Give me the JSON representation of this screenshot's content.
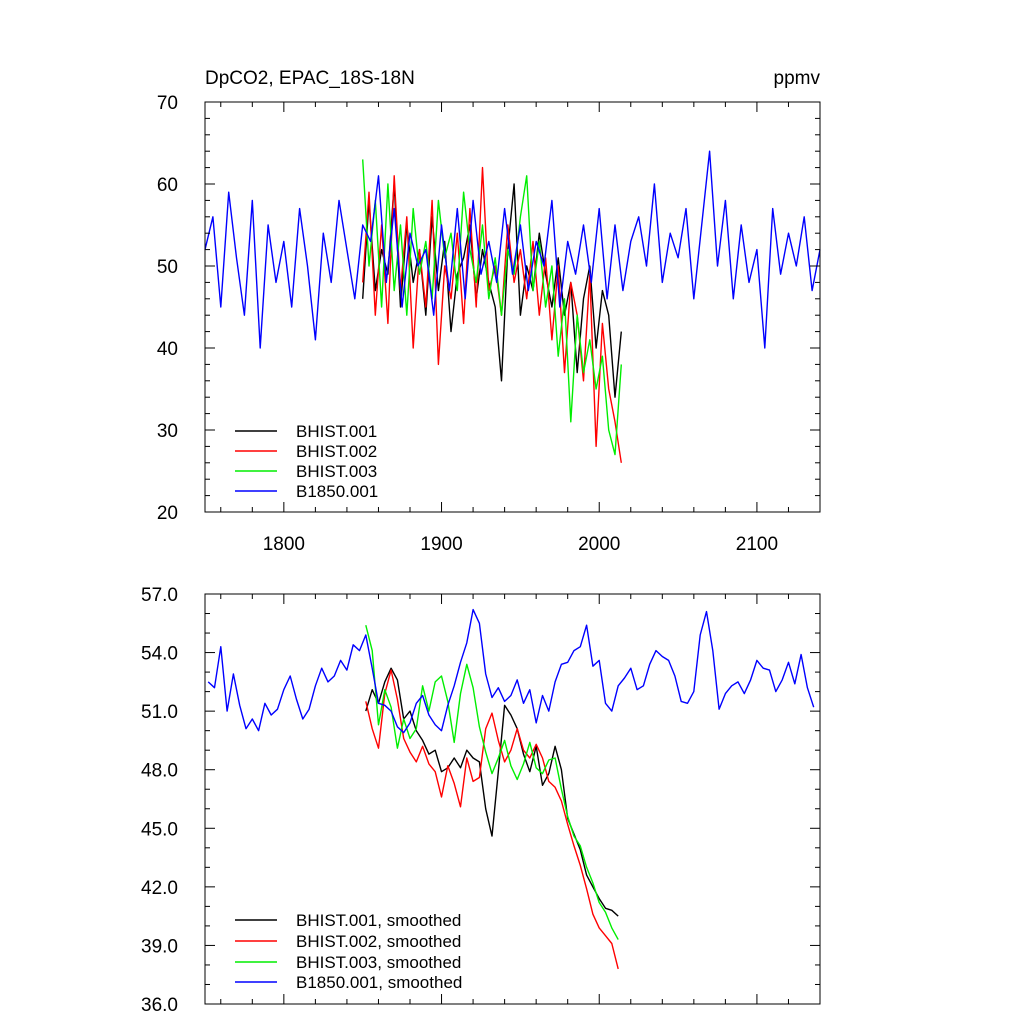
{
  "chart_data": [
    {
      "type": "line",
      "title": "DpCO2, EPAC_18S-18N",
      "units": "ppmv",
      "xlabel": "",
      "ylabel": "",
      "xlim": [
        1750,
        2140
      ],
      "ylim": [
        20,
        70
      ],
      "x_ticks": [
        1800,
        1900,
        2000,
        2100
      ],
      "x_tick_labels": [
        "1800",
        "1900",
        "2000",
        "2100"
      ],
      "y_ticks": [
        20,
        30,
        40,
        50,
        60,
        70
      ],
      "y_tick_labels": [
        "20",
        "30",
        "40",
        "50",
        "60",
        "70"
      ],
      "legend_position": "bottom-left",
      "series": [
        {
          "name": "BHIST.001",
          "color": "#000000",
          "x": [
            1850,
            1854,
            1858,
            1862,
            1866,
            1870,
            1874,
            1878,
            1882,
            1886,
            1890,
            1894,
            1898,
            1902,
            1906,
            1910,
            1914,
            1918,
            1922,
            1926,
            1930,
            1934,
            1938,
            1942,
            1946,
            1950,
            1954,
            1958,
            1962,
            1966,
            1970,
            1974,
            1978,
            1982,
            1986,
            1990,
            1994,
            1998,
            2002,
            2006,
            2010,
            2014
          ],
          "y": [
            46,
            58,
            47,
            52,
            49,
            60,
            45,
            55,
            48,
            52,
            44,
            56,
            47,
            53,
            42,
            49,
            51,
            55,
            46,
            52,
            48,
            45,
            36,
            52,
            60,
            44,
            50,
            47,
            54,
            49,
            45,
            51,
            44,
            48,
            37,
            46,
            50,
            40,
            47,
            44,
            34,
            42
          ]
        },
        {
          "name": "BHIST.002",
          "color": "#ff0000",
          "x": [
            1850,
            1854,
            1858,
            1862,
            1866,
            1870,
            1874,
            1878,
            1882,
            1886,
            1890,
            1894,
            1898,
            1902,
            1906,
            1910,
            1914,
            1918,
            1922,
            1926,
            1930,
            1934,
            1938,
            1942,
            1946,
            1950,
            1954,
            1958,
            1962,
            1966,
            1970,
            1974,
            1978,
            1982,
            1986,
            1990,
            1994,
            1998,
            2002,
            2006,
            2010,
            2014
          ],
          "y": [
            48,
            59,
            44,
            55,
            43,
            61,
            47,
            56,
            40,
            52,
            45,
            58,
            38,
            50,
            46,
            54,
            43,
            57,
            45,
            62,
            47,
            50,
            44,
            55,
            48,
            52,
            46,
            53,
            44,
            51,
            41,
            50,
            37,
            48,
            44,
            36,
            49,
            28,
            43,
            35,
            31,
            26
          ]
        },
        {
          "name": "BHIST.003",
          "color": "#00ee00",
          "x": [
            1850,
            1854,
            1858,
            1862,
            1866,
            1870,
            1874,
            1878,
            1882,
            1886,
            1890,
            1894,
            1898,
            1902,
            1906,
            1910,
            1914,
            1918,
            1922,
            1926,
            1930,
            1934,
            1938,
            1942,
            1946,
            1950,
            1954,
            1958,
            1962,
            1966,
            1970,
            1974,
            1978,
            1982,
            1986,
            1990,
            1994,
            1998,
            2002,
            2006,
            2010,
            2014
          ],
          "y": [
            63,
            50,
            58,
            45,
            60,
            47,
            55,
            44,
            57,
            49,
            53,
            46,
            58,
            51,
            54,
            47,
            59,
            52,
            48,
            55,
            46,
            51,
            44,
            52,
            49,
            56,
            61,
            47,
            53,
            45,
            50,
            39,
            46,
            31,
            44,
            37,
            41,
            35,
            39,
            30,
            27,
            38
          ]
        },
        {
          "name": "B1850.001",
          "color": "#0000ff",
          "x": [
            1750,
            1755,
            1760,
            1765,
            1770,
            1775,
            1780,
            1785,
            1790,
            1795,
            1800,
            1805,
            1810,
            1815,
            1820,
            1825,
            1830,
            1835,
            1840,
            1845,
            1850,
            1855,
            1860,
            1865,
            1870,
            1875,
            1880,
            1885,
            1890,
            1895,
            1900,
            1905,
            1910,
            1915,
            1920,
            1925,
            1930,
            1935,
            1940,
            1945,
            1950,
            1955,
            1960,
            1965,
            1970,
            1975,
            1980,
            1985,
            1990,
            1995,
            2000,
            2005,
            2010,
            2015,
            2020,
            2025,
            2030,
            2035,
            2040,
            2045,
            2050,
            2055,
            2060,
            2065,
            2070,
            2075,
            2080,
            2085,
            2090,
            2095,
            2100,
            2105,
            2110,
            2115,
            2120,
            2125,
            2130,
            2135,
            2140
          ],
          "y": [
            52,
            56,
            45,
            59,
            51,
            44,
            58,
            40,
            55,
            48,
            53,
            45,
            57,
            50,
            41,
            54,
            48,
            58,
            52,
            46,
            55,
            53,
            61,
            48,
            57,
            45,
            54,
            50,
            52,
            44,
            55,
            47,
            57,
            46,
            58,
            49,
            53,
            48,
            57,
            49,
            55,
            47,
            53,
            50,
            58,
            45,
            53,
            49,
            55,
            48,
            57,
            46,
            55,
            47,
            53,
            56,
            50,
            60,
            48,
            54,
            51,
            57,
            46,
            55,
            64,
            50,
            58,
            46,
            55,
            48,
            52,
            40,
            57,
            49,
            54,
            50,
            56,
            47,
            52
          ]
        }
      ]
    },
    {
      "type": "line",
      "title": "",
      "xlabel": "",
      "ylabel": "",
      "xlim": [
        1750,
        2140
      ],
      "ylim": [
        36,
        57
      ],
      "x_ticks": [
        1800,
        1900,
        2000,
        2100
      ],
      "y_ticks": [
        36,
        39,
        42,
        45,
        48,
        51,
        54,
        57
      ],
      "y_tick_labels": [
        "36.0",
        "39.0",
        "42.0",
        "45.0",
        "48.0",
        "51.0",
        "54.0",
        "57.0"
      ],
      "legend_position": "bottom-left",
      "series": [
        {
          "name": "BHIST.001, smoothed",
          "color": "#000000",
          "x": [
            1852,
            1856,
            1860,
            1864,
            1868,
            1872,
            1876,
            1880,
            1884,
            1888,
            1892,
            1896,
            1900,
            1904,
            1908,
            1912,
            1916,
            1920,
            1924,
            1928,
            1932,
            1936,
            1940,
            1944,
            1948,
            1952,
            1956,
            1960,
            1964,
            1968,
            1972,
            1976,
            1980,
            1984,
            1988,
            1992,
            1996,
            2000,
            2004,
            2008,
            2012
          ],
          "y": [
            51.0,
            52.1,
            51.4,
            52.5,
            53.2,
            52.6,
            50.6,
            51.0,
            50.0,
            49.5,
            48.8,
            49.0,
            47.9,
            48.1,
            48.6,
            48.1,
            49.0,
            48.6,
            48.4,
            46.0,
            44.6,
            47.9,
            51.3,
            50.8,
            50.1,
            48.8,
            47.9,
            49.2,
            47.2,
            47.8,
            49.2,
            48.0,
            45.5,
            44.7,
            43.9,
            42.6,
            42.0,
            41.4,
            40.9,
            40.8,
            40.5
          ]
        },
        {
          "name": "BHIST.002, smoothed",
          "color": "#ff0000",
          "x": [
            1852,
            1856,
            1860,
            1864,
            1868,
            1872,
            1876,
            1880,
            1884,
            1888,
            1892,
            1896,
            1900,
            1904,
            1908,
            1912,
            1916,
            1920,
            1924,
            1928,
            1932,
            1936,
            1940,
            1944,
            1948,
            1952,
            1956,
            1960,
            1964,
            1968,
            1972,
            1976,
            1980,
            1984,
            1988,
            1992,
            1996,
            2000,
            2004,
            2008,
            2012
          ],
          "y": [
            51.5,
            50.1,
            49.1,
            51.9,
            53.1,
            51.6,
            49.6,
            48.9,
            48.4,
            49.2,
            48.3,
            47.9,
            46.6,
            48.2,
            47.3,
            46.1,
            48.6,
            47.4,
            47.6,
            50.1,
            50.9,
            49.5,
            48.4,
            49.0,
            50.1,
            49.0,
            48.6,
            49.3,
            48.6,
            47.4,
            47.1,
            46.4,
            45.2,
            44.1,
            43.1,
            41.9,
            40.6,
            39.9,
            39.5,
            39.1,
            37.8
          ]
        },
        {
          "name": "BHIST.003, smoothed",
          "color": "#00ee00",
          "x": [
            1852,
            1856,
            1860,
            1864,
            1868,
            1872,
            1876,
            1880,
            1884,
            1888,
            1892,
            1896,
            1900,
            1904,
            1908,
            1912,
            1916,
            1920,
            1924,
            1928,
            1932,
            1936,
            1940,
            1944,
            1948,
            1952,
            1956,
            1960,
            1964,
            1968,
            1972,
            1976,
            1980,
            1984,
            1988,
            1992,
            1996,
            2000,
            2004,
            2008,
            2012
          ],
          "y": [
            55.4,
            54.1,
            50.3,
            52.1,
            51.2,
            49.1,
            50.6,
            49.6,
            50.1,
            52.3,
            51.0,
            52.5,
            52.8,
            51.5,
            49.4,
            51.9,
            53.4,
            52.2,
            50.2,
            48.9,
            47.8,
            48.6,
            49.5,
            48.2,
            47.5,
            48.3,
            49.4,
            48.1,
            47.8,
            48.5,
            48.6,
            47.0,
            45.6,
            44.6,
            44.1,
            43.0,
            42.2,
            41.2,
            40.7,
            39.9,
            39.3
          ]
        },
        {
          "name": "B1850.001, smoothed",
          "color": "#0000ff",
          "x": [
            1752,
            1756,
            1760,
            1764,
            1768,
            1772,
            1776,
            1780,
            1784,
            1788,
            1792,
            1796,
            1800,
            1804,
            1808,
            1812,
            1816,
            1820,
            1824,
            1828,
            1832,
            1836,
            1840,
            1844,
            1848,
            1852,
            1856,
            1860,
            1864,
            1868,
            1872,
            1876,
            1880,
            1884,
            1888,
            1892,
            1896,
            1900,
            1904,
            1908,
            1912,
            1916,
            1920,
            1924,
            1928,
            1932,
            1936,
            1940,
            1944,
            1948,
            1952,
            1956,
            1960,
            1964,
            1968,
            1972,
            1976,
            1980,
            1984,
            1988,
            1992,
            1996,
            2000,
            2004,
            2008,
            2012,
            2016,
            2020,
            2024,
            2028,
            2032,
            2036,
            2040,
            2044,
            2048,
            2052,
            2056,
            2060,
            2064,
            2068,
            2072,
            2076,
            2080,
            2084,
            2088,
            2092,
            2096,
            2100,
            2104,
            2108,
            2112,
            2116,
            2120,
            2124,
            2128,
            2132,
            2136
          ],
          "y": [
            52.5,
            52.2,
            54.3,
            51.0,
            52.9,
            51.3,
            50.1,
            50.6,
            50.0,
            51.4,
            50.8,
            51.1,
            52.1,
            52.8,
            51.6,
            50.6,
            51.1,
            52.3,
            53.2,
            52.5,
            52.8,
            53.6,
            53.1,
            54.4,
            54.1,
            54.9,
            53.2,
            51.4,
            51.3,
            51.0,
            50.2,
            49.9,
            50.4,
            51.4,
            51.8,
            50.8,
            50.3,
            50.0,
            51.3,
            52.3,
            53.5,
            54.5,
            56.2,
            55.5,
            52.9,
            51.7,
            52.2,
            51.5,
            51.8,
            52.6,
            51.4,
            52.1,
            50.4,
            51.8,
            51.0,
            52.5,
            53.4,
            53.5,
            54.1,
            54.3,
            55.4,
            53.3,
            53.6,
            51.4,
            51.0,
            52.3,
            52.7,
            53.2,
            52.1,
            52.3,
            53.4,
            54.1,
            53.8,
            53.6,
            52.8,
            51.5,
            51.4,
            52.0,
            54.9,
            56.1,
            54.1,
            51.1,
            51.9,
            52.3,
            52.5,
            51.9,
            52.6,
            53.6,
            53.2,
            53.1,
            52.0,
            52.6,
            53.5,
            52.4,
            53.9,
            52.2,
            51.2
          ]
        }
      ]
    }
  ]
}
